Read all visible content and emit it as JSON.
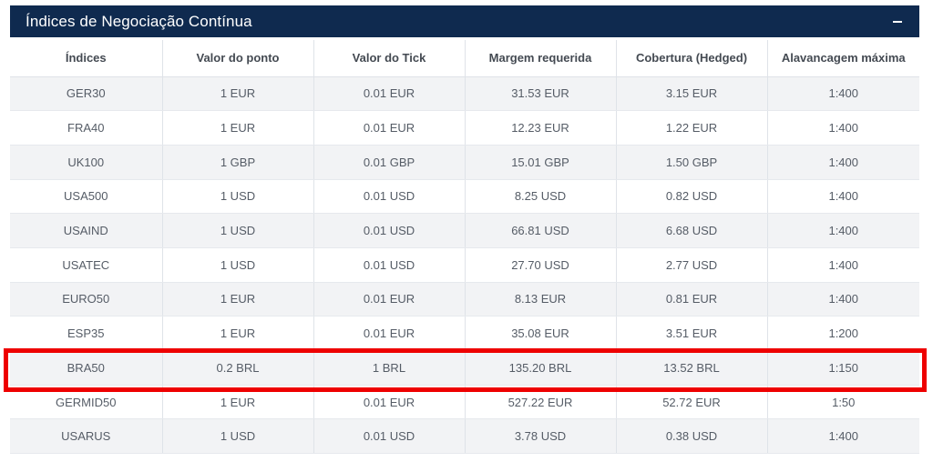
{
  "panel": {
    "title": "Índices de Negociação Contínua",
    "collapse_icon": "minus-icon"
  },
  "table": {
    "columns": [
      "Índices",
      "Valor do ponto",
      "Valor do Tick",
      "Margem requerida",
      "Cobertura (Hedged)",
      "Alavancagem máxima"
    ],
    "rows": [
      [
        "GER30",
        "1 EUR",
        "0.01 EUR",
        "31.53 EUR",
        "3.15 EUR",
        "1:400"
      ],
      [
        "FRA40",
        "1 EUR",
        "0.01 EUR",
        "12.23 EUR",
        "1.22 EUR",
        "1:400"
      ],
      [
        "UK100",
        "1 GBP",
        "0.01 GBP",
        "15.01 GBP",
        "1.50 GBP",
        "1:400"
      ],
      [
        "USA500",
        "1 USD",
        "0.01 USD",
        "8.25 USD",
        "0.82 USD",
        "1:400"
      ],
      [
        "USAIND",
        "1 USD",
        "0.01 USD",
        "66.81 USD",
        "6.68 USD",
        "1:400"
      ],
      [
        "USATEC",
        "1 USD",
        "0.01 USD",
        "27.70 USD",
        "2.77 USD",
        "1:400"
      ],
      [
        "EURO50",
        "1 EUR",
        "0.01 EUR",
        "8.13 EUR",
        "0.81 EUR",
        "1:400"
      ],
      [
        "ESP35",
        "1 EUR",
        "0.01 EUR",
        "35.08 EUR",
        "3.51 EUR",
        "1:200"
      ],
      [
        "BRA50",
        "0.2 BRL",
        "1 BRL",
        "135.20 BRL",
        "13.52 BRL",
        "1:150"
      ],
      [
        "GERMID50",
        "1 EUR",
        "0.01 EUR",
        "527.22 EUR",
        "52.72 EUR",
        "1:50"
      ],
      [
        "USARUS",
        "1 USD",
        "0.01 USD",
        "3.78 USD",
        "0.38 USD",
        "1:400"
      ]
    ]
  },
  "highlight": {
    "row": "BRA50",
    "color": "#ee0000"
  }
}
